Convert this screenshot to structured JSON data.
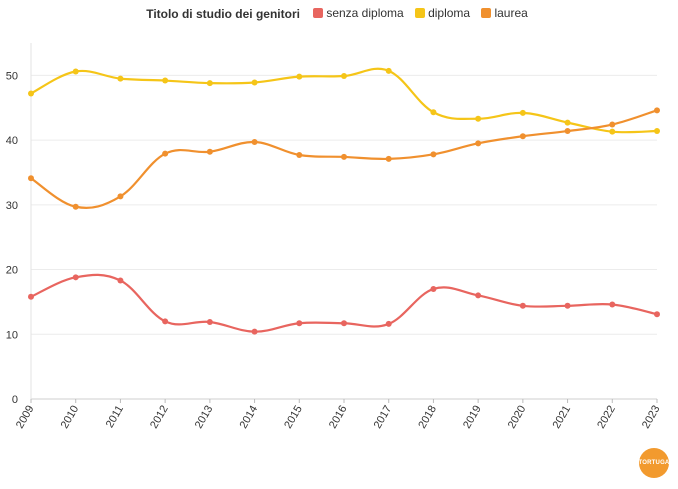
{
  "chart_data": {
    "type": "line",
    "title": "Titolo di studio dei genitori",
    "x": [
      "2009",
      "2010",
      "2011",
      "2012",
      "2013",
      "2014",
      "2015",
      "2016",
      "2017",
      "2018",
      "2019",
      "2020",
      "2021",
      "2022",
      "2023"
    ],
    "ylim": [
      0,
      55
    ],
    "yticks": [
      0,
      10,
      20,
      30,
      40,
      50
    ],
    "grid": true,
    "legend_position": "top-center",
    "series": [
      {
        "name": "senza diploma",
        "color": "#e8655f",
        "values": [
          15.8,
          18.8,
          18.3,
          12.0,
          11.9,
          10.4,
          11.7,
          11.7,
          11.6,
          17.0,
          16.0,
          14.4,
          14.4,
          14.6,
          13.1
        ]
      },
      {
        "name": "diploma",
        "color": "#f5c518",
        "values": [
          47.2,
          50.6,
          49.5,
          49.2,
          48.8,
          48.9,
          49.8,
          49.9,
          50.7,
          44.3,
          43.3,
          44.2,
          42.7,
          41.3,
          41.4
        ]
      },
      {
        "name": "laurea",
        "color": "#f0902e",
        "values": [
          34.1,
          29.7,
          31.3,
          37.9,
          38.2,
          39.7,
          37.7,
          37.4,
          37.1,
          37.8,
          39.5,
          40.6,
          41.4,
          42.4,
          44.6
        ]
      }
    ]
  },
  "logo": {
    "text": "TORTUGA"
  }
}
